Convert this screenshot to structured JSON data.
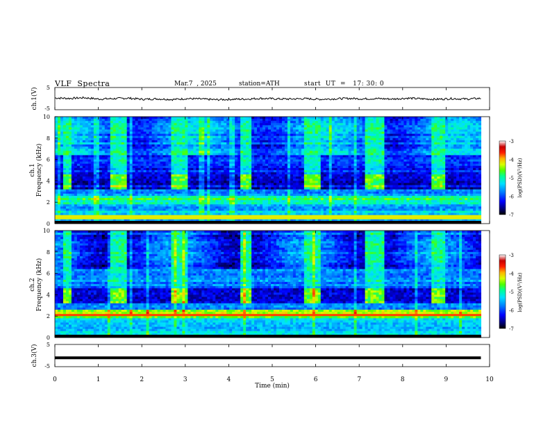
{
  "header": {
    "title": "VLF  Spectra",
    "date": "Mar.7  , 2025",
    "station": "station=ATH",
    "start": "start  UT  =   17: 30: 0"
  },
  "chart_data": [
    {
      "type": "line",
      "panel": "ch1-waveform",
      "ylabel": "ch.1(V)",
      "yticks": [
        "5",
        "-5"
      ],
      "ylim": [
        -5,
        5
      ],
      "xlim": [
        0,
        10
      ],
      "x_extent_min": [
        0,
        9.8
      ],
      "description_level_v": 0,
      "series": [
        {
          "values": [
            0.3,
            0.1,
            0.4,
            -0.2,
            0.0,
            0.2,
            -0.3,
            -0.1,
            -0.4,
            0.0,
            -0.2,
            -0.5,
            -0.3,
            -0.2,
            0.1,
            -0.1,
            -0.2,
            0.0,
            -0.3,
            -0.1,
            0.1,
            -0.1,
            0.0,
            -0.2,
            0.2,
            -0.1,
            -0.3,
            0.0,
            -0.2,
            0.1
          ]
        }
      ]
    },
    {
      "type": "heatmap",
      "panel": "ch1-spectrogram",
      "ylabel_channel": "ch.1",
      "ylabel": "Frequency  (kHz)",
      "yticks": [
        "10",
        "8",
        "6",
        "4",
        "2",
        "0"
      ],
      "ylim": [
        0,
        10
      ],
      "xlim": [
        0,
        10
      ],
      "colorbar": {
        "label": "log(PSD)(V²/Hz)",
        "ticks": [
          "-3",
          "-4",
          "-5",
          "-6",
          "-7"
        ],
        "range": [
          -7,
          -3
        ]
      },
      "burst_intervals_min": [
        [
          0.2,
          0.4
        ],
        [
          1.25,
          1.65
        ],
        [
          2.7,
          3.05
        ],
        [
          4.25,
          4.55
        ],
        [
          5.75,
          6.1
        ],
        [
          7.15,
          7.55
        ],
        [
          8.65,
          8.95
        ]
      ],
      "burst_band_khz": [
        3.4,
        4.3
      ]
    },
    {
      "type": "heatmap",
      "panel": "ch2-spectrogram",
      "ylabel_channel": "ch.2",
      "ylabel": "Frequency  (kHz)",
      "yticks": [
        "10",
        "8",
        "6",
        "4",
        "2",
        "0"
      ],
      "ylim": [
        0,
        10
      ],
      "xlim": [
        0,
        10
      ],
      "colorbar": {
        "label": "log(PSD)(V²/Hz)",
        "ticks": [
          "-3",
          "-4",
          "-5",
          "-6",
          "-7"
        ],
        "range": [
          -7,
          -3
        ]
      },
      "burst_intervals_min": [
        [
          0.2,
          0.4
        ],
        [
          1.25,
          1.65
        ],
        [
          2.7,
          3.05
        ],
        [
          4.25,
          4.55
        ],
        [
          5.75,
          6.1
        ],
        [
          7.15,
          7.55
        ],
        [
          8.65,
          8.95
        ]
      ],
      "burst_band_khz": [
        3.4,
        4.3
      ]
    },
    {
      "type": "line",
      "panel": "ch3-waveform",
      "ylabel": "ch.3(V)",
      "yticks": [
        "5",
        "-5"
      ],
      "ylim": [
        -5,
        5
      ],
      "xlim": [
        0,
        10
      ],
      "xticks": [
        "0",
        "1",
        "2",
        "3",
        "4",
        "5",
        "6",
        "7",
        "8",
        "9",
        "10"
      ],
      "xlabel": "Time  (min)",
      "series": [
        {
          "values": [
            -1.0,
            -1.0
          ]
        }
      ]
    }
  ],
  "colors": {
    "line": "#000000",
    "frame": "#000000",
    "colormap": [
      "#000000",
      "#00007a",
      "#0000ff",
      "#0078ff",
      "#00e0ff",
      "#00ff96",
      "#50ff00",
      "#d8ff00",
      "#ffb400",
      "#ff1e00",
      "#c80000",
      "#ffffff"
    ]
  }
}
